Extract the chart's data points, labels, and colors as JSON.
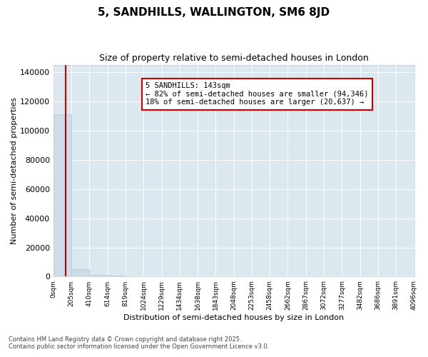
{
  "title": "5, SANDHILLS, WALLINGTON, SM6 8JD",
  "subtitle": "Size of property relative to semi-detached houses in London",
  "xlabel": "Distribution of semi-detached houses by size in London",
  "ylabel": "Number of semi-detached properties",
  "property_size": 143,
  "property_label": "5 SANDHILLS: 143sqm",
  "pct_smaller": 82,
  "count_smaller": 94346,
  "pct_larger": 18,
  "count_larger": 20637,
  "bar_color": "#ccdce8",
  "bar_edge_color": "#b0c8d8",
  "red_line_color": "#cc0000",
  "annotation_box_edge_color": "#cc0000",
  "plot_bg_color": "#dce8f0",
  "ylim": [
    0,
    145000
  ],
  "yticks": [
    0,
    20000,
    40000,
    60000,
    80000,
    100000,
    120000,
    140000
  ],
  "bin_edges": [
    0,
    205,
    410,
    614,
    819,
    1024,
    1229,
    1434,
    1638,
    1843,
    2048,
    2253,
    2458,
    2662,
    2867,
    3072,
    3277,
    3482,
    3686,
    3891,
    4096
  ],
  "bin_counts": [
    111000,
    5000,
    1200,
    500,
    280,
    180,
    120,
    80,
    60,
    45,
    35,
    25,
    20,
    15,
    12,
    10,
    8,
    6,
    5,
    4
  ],
  "footnote1": "Contains HM Land Registry data © Crown copyright and database right 2025.",
  "footnote2": "Contains public sector information licensed under the Open Government Licence v3.0."
}
